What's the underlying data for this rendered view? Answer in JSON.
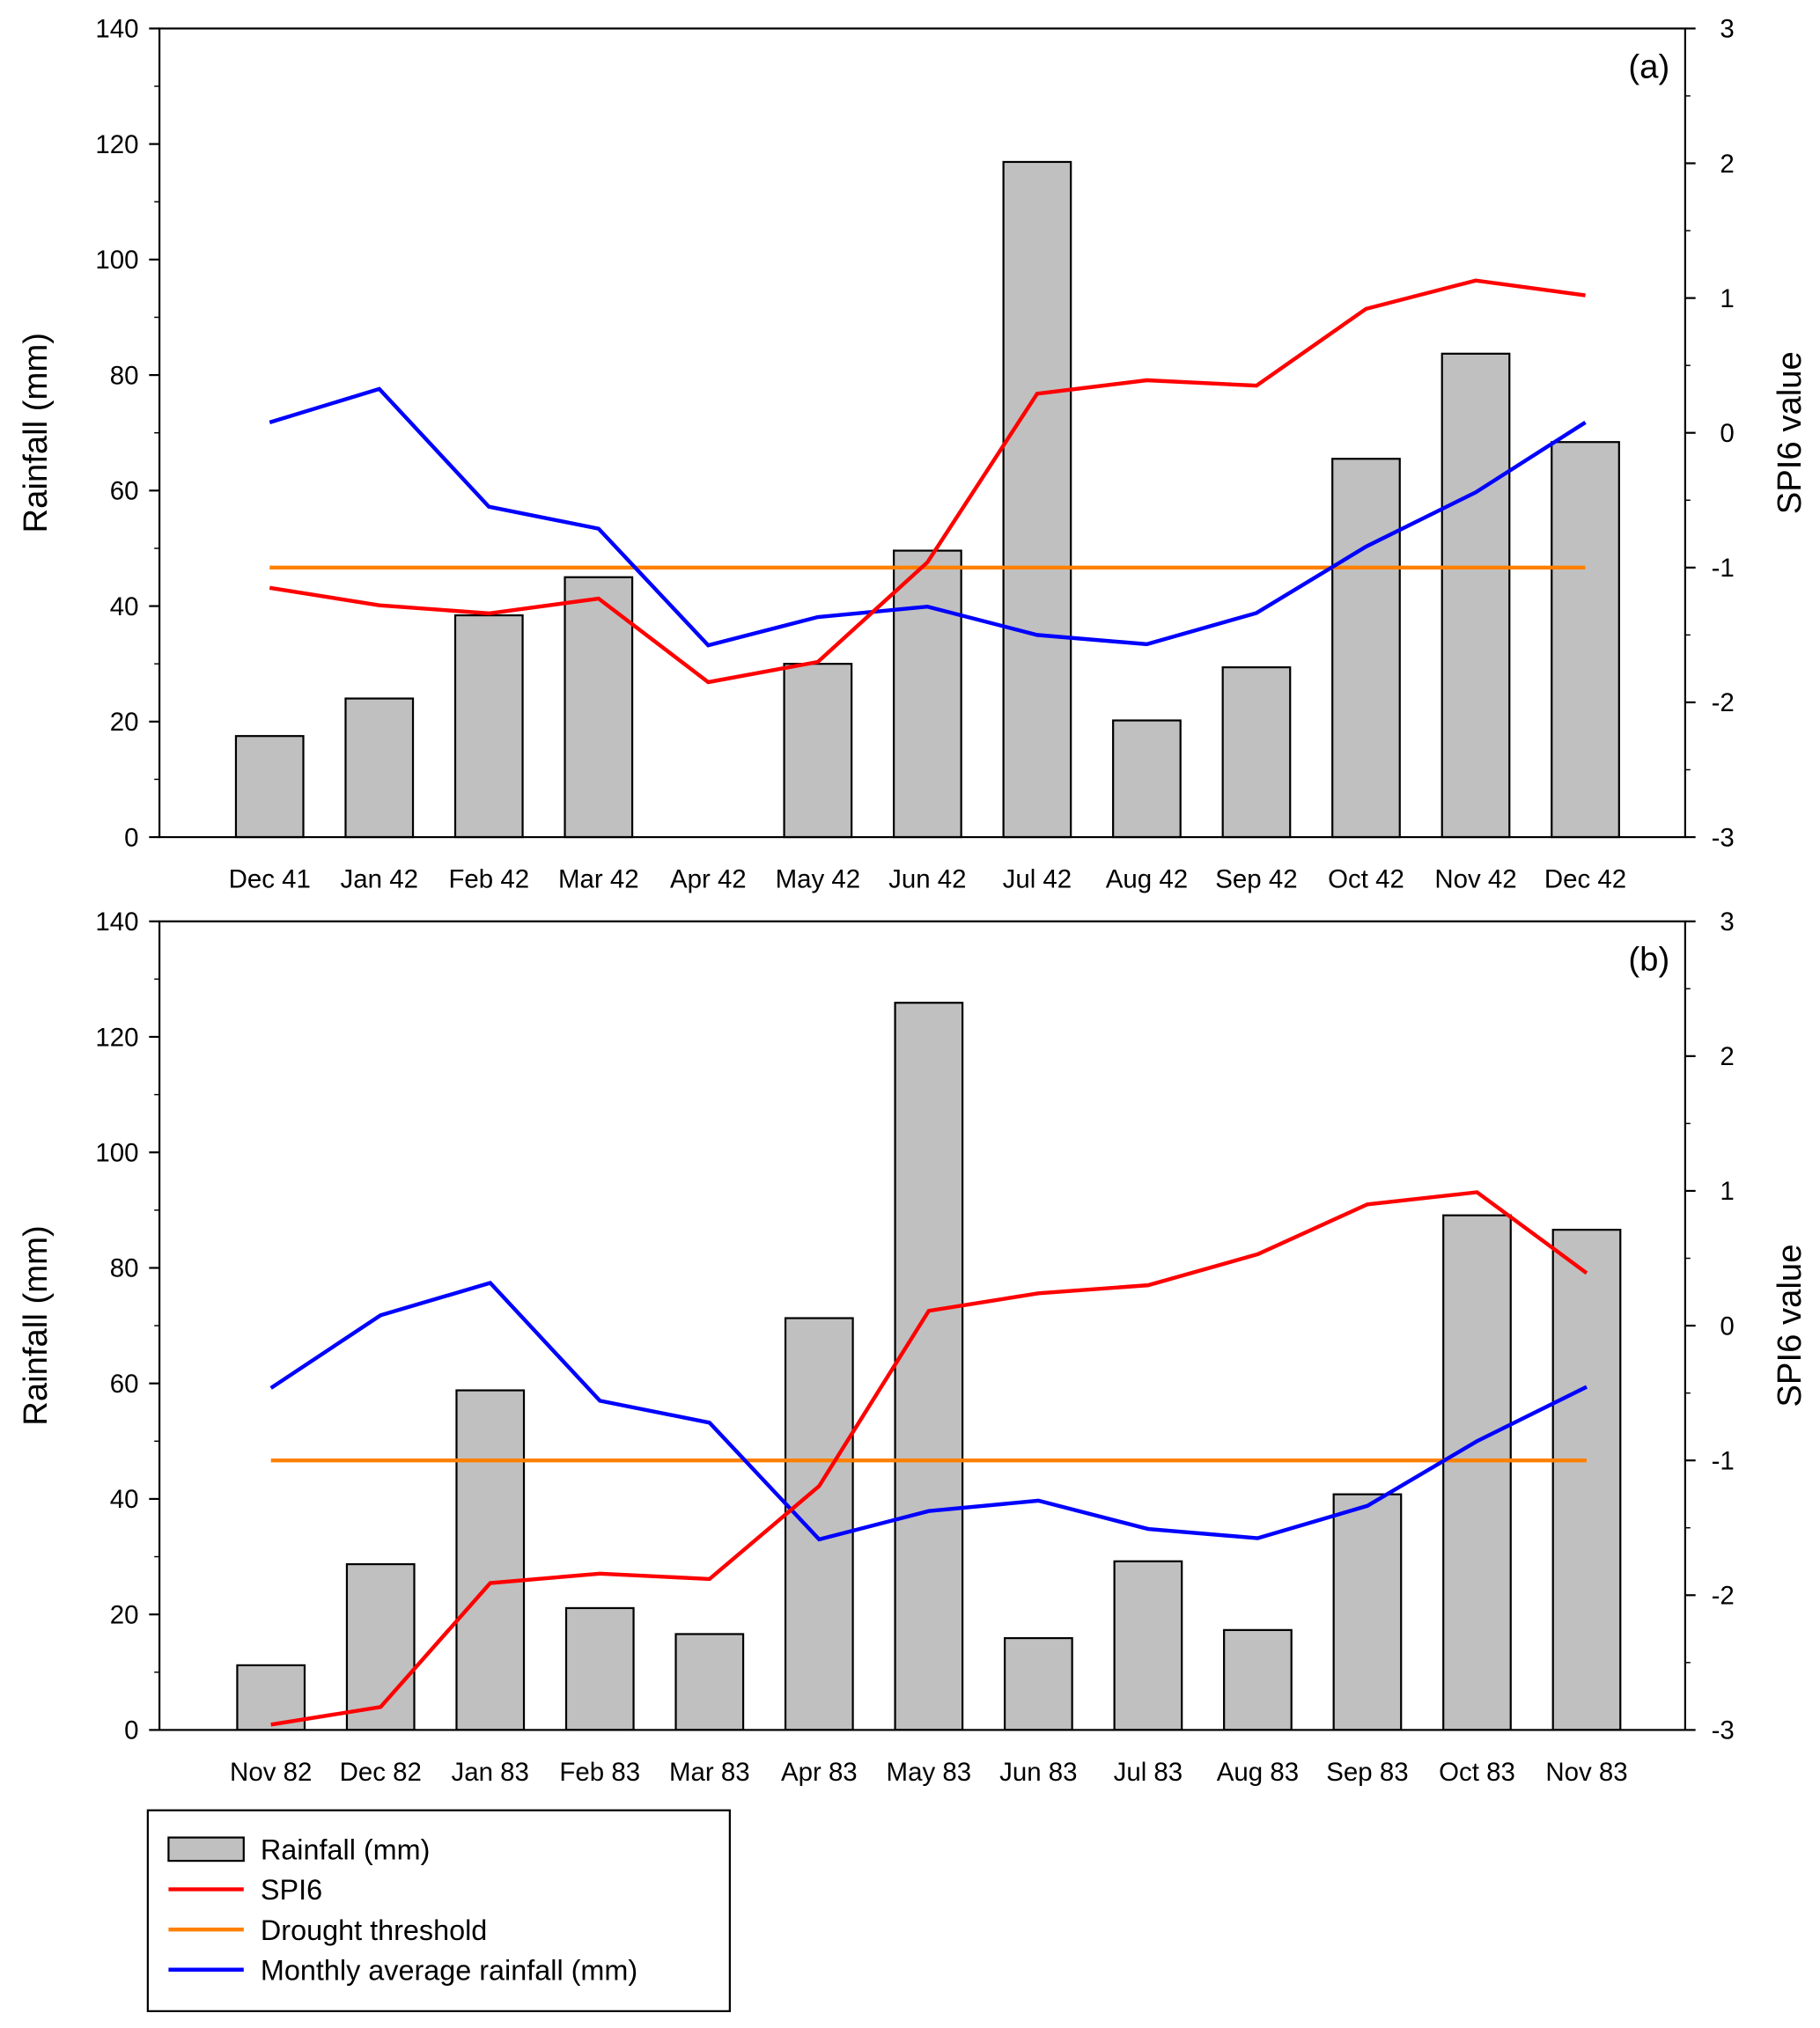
{
  "colors": {
    "bar_fill": "#c0c0c0",
    "bar_stroke": "#000000",
    "spi6": "#ff0000",
    "threshold": "#ff8000",
    "monthly_avg": "#0000ff"
  },
  "legend": {
    "items": [
      {
        "label": "Rainfall (mm)",
        "kind": "bar"
      },
      {
        "label": "SPI6",
        "kind": "spi6"
      },
      {
        "label": "Drought  threshold",
        "kind": "threshold"
      },
      {
        "label": "Monthly average rainfall (mm)",
        "kind": "monthly_avg"
      }
    ]
  },
  "chart_data": [
    {
      "type": "bar+line",
      "panel_label": "(a)",
      "ylabel": "Rainfall (mm)",
      "y2label": "SPI6 value",
      "ylim": [
        0,
        140
      ],
      "y2lim": [
        -3,
        3
      ],
      "yticks": [
        "0",
        "20",
        "40",
        "60",
        "80",
        "100",
        "120",
        "140"
      ],
      "y2ticks": [
        "-3",
        "-2",
        "-1",
        "0",
        "1",
        "2",
        "3"
      ],
      "categories": [
        "Dec 41",
        "Jan 42",
        "Feb 42",
        "Mar 42",
        "Apr 42",
        "May 42",
        "Jun 42",
        "Jul 42",
        "Aug 42",
        "Sep 42",
        "Oct 42",
        "Nov 42",
        "Dec 42"
      ],
      "rainfall": [
        17.5,
        24.0,
        38.4,
        45.0,
        0,
        30.0,
        49.6,
        116.9,
        20.2,
        29.4,
        65.5,
        83.7,
        68.4
      ],
      "spi6": [
        -1.15,
        -1.28,
        -1.34,
        -1.23,
        -1.85,
        -1.7,
        -0.96,
        0.29,
        0.39,
        0.35,
        0.92,
        1.13,
        1.02
      ],
      "drought_threshold": -1,
      "monthly_avg": [
        71.8,
        77.6,
        57.2,
        53.4,
        33.2,
        38.1,
        39.9,
        35.0,
        33.4,
        38.8,
        50.3,
        59.7,
        71.8
      ]
    },
    {
      "type": "bar+line",
      "panel_label": "(b)",
      "ylabel": "Rainfall (mm)",
      "y2label": "SPI6 value",
      "ylim": [
        0,
        140
      ],
      "y2lim": [
        -3,
        3
      ],
      "yticks": [
        "0",
        "20",
        "40",
        "60",
        "80",
        "100",
        "120",
        "140"
      ],
      "y2ticks": [
        "-3",
        "-2",
        "-1",
        "0",
        "1",
        "2",
        "3"
      ],
      "categories": [
        "Nov 82",
        "Dec 82",
        "Jan 83",
        "Feb 83",
        "Mar 83",
        "Apr 83",
        "May 83",
        "Jun 83",
        "Jul 83",
        "Aug 83",
        "Sep 83",
        "Oct 83",
        "Nov 83"
      ],
      "rainfall": [
        11.2,
        28.7,
        58.8,
        21.1,
        16.6,
        71.3,
        125.9,
        15.9,
        29.2,
        17.3,
        40.8,
        89.1,
        86.6
      ],
      "spi6": [
        -2.96,
        -2.83,
        -1.91,
        -1.84,
        -1.88,
        -1.19,
        0.11,
        0.24,
        0.3,
        0.53,
        0.9,
        0.99,
        0.39
      ],
      "drought_threshold": -1,
      "monthly_avg": [
        59.2,
        71.8,
        77.4,
        57.0,
        53.2,
        33.0,
        37.9,
        39.7,
        34.8,
        33.2,
        38.8,
        50.0,
        59.4
      ]
    }
  ]
}
